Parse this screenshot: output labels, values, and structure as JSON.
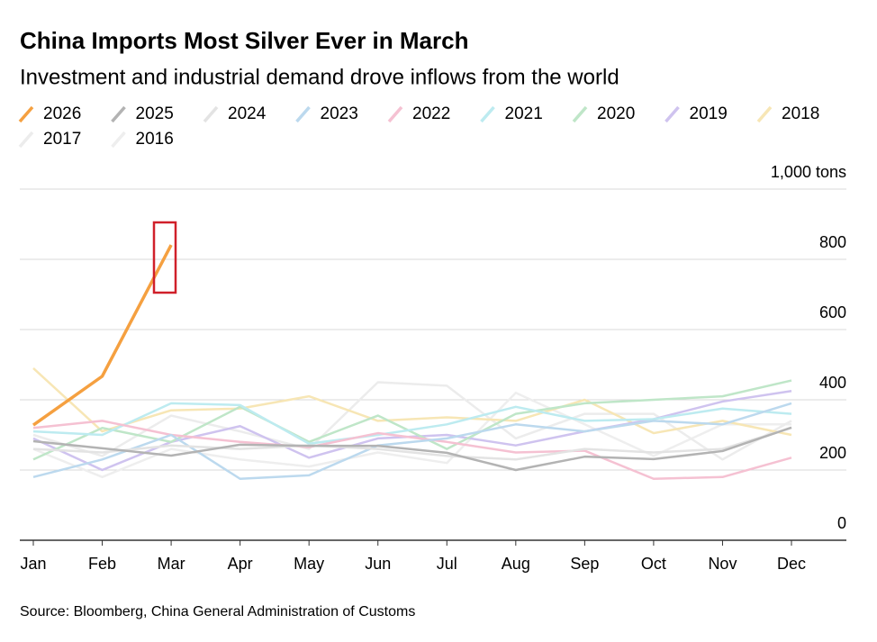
{
  "chart_data": {
    "type": "line",
    "title": "China Imports Most Silver Ever in March",
    "subtitle": "Investment and industrial demand drove inflows from the world",
    "source": "Source: Bloomberg, China General Administration of Customs",
    "categories": [
      "Jan",
      "Feb",
      "Mar",
      "Apr",
      "May",
      "Jun",
      "Jul",
      "Aug",
      "Sep",
      "Oct",
      "Nov",
      "Dec"
    ],
    "ylim": [
      0,
      1000
    ],
    "yticks": [
      0,
      200,
      400,
      600,
      800,
      {
        "value": 1000,
        "label": "1,000 tons"
      }
    ],
    "grid": true,
    "series": [
      {
        "name": "2026",
        "color": "#f5a040",
        "values": [
          328,
          467,
          841,
          null,
          null,
          null,
          null,
          null,
          null,
          null,
          null,
          null
        ]
      },
      {
        "name": "2025",
        "color": "#b3b3b3",
        "values": [
          282,
          262,
          241,
          272,
          269,
          269,
          249,
          200,
          238,
          231,
          254,
          321
        ]
      },
      {
        "name": "2024",
        "color": "#e3e3e3",
        "values": [
          260,
          250,
          270,
          260,
          270,
          260,
          240,
          230,
          260,
          250,
          260,
          320
        ]
      },
      {
        "name": "2023",
        "color": "#bcd9ee",
        "values": [
          180,
          230,
          300,
          175,
          185,
          270,
          290,
          330,
          310,
          340,
          330,
          390
        ]
      },
      {
        "name": "2022",
        "color": "#f5c1d2",
        "values": [
          320,
          340,
          300,
          280,
          265,
          305,
          280,
          250,
          255,
          175,
          180,
          235
        ]
      },
      {
        "name": "2021",
        "color": "#bdebf0",
        "values": [
          310,
          300,
          390,
          385,
          275,
          300,
          330,
          380,
          340,
          345,
          375,
          360
        ]
      },
      {
        "name": "2020",
        "color": "#bfe6c8",
        "values": [
          230,
          320,
          280,
          380,
          280,
          355,
          260,
          360,
          390,
          400,
          410,
          455
        ]
      },
      {
        "name": "2019",
        "color": "#cfc3ef",
        "values": [
          290,
          200,
          280,
          325,
          235,
          290,
          300,
          270,
          310,
          345,
          395,
          425
        ]
      },
      {
        "name": "2018",
        "color": "#f7e6b5",
        "values": [
          490,
          310,
          370,
          375,
          410,
          340,
          350,
          340,
          400,
          305,
          340,
          300
        ]
      },
      {
        "name": "2017",
        "color": "#ececec",
        "values": [
          300,
          240,
          355,
          310,
          260,
          450,
          440,
          290,
          360,
          360,
          230,
          340
        ]
      },
      {
        "name": "2016",
        "color": "#eeeeee",
        "values": [
          260,
          180,
          260,
          230,
          210,
          250,
          220,
          420,
          330,
          240,
          330,
          330
        ]
      }
    ]
  }
}
